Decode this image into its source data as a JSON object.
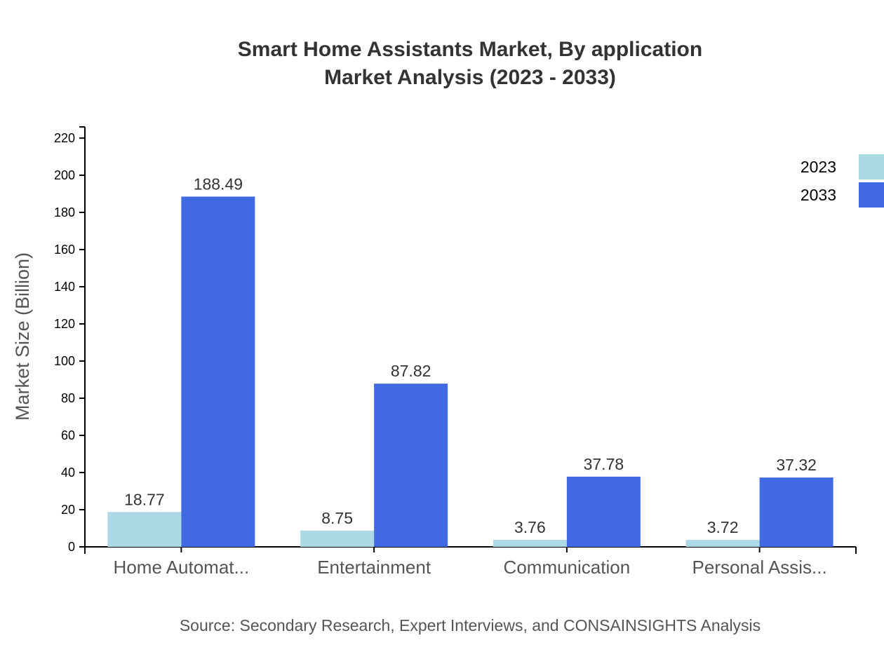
{
  "chart_data": {
    "type": "bar",
    "title": "Smart Home Assistants Market, By application",
    "subtitle": "Market Analysis (2023 - 2033)",
    "xlabel": "",
    "ylabel": "Market Size (Billion)",
    "ylim": [
      0,
      226
    ],
    "yticks": [
      0,
      20,
      40,
      60,
      80,
      100,
      120,
      140,
      160,
      180,
      200,
      220
    ],
    "categories": [
      "Home Automat...",
      "Entertainment",
      "Communication",
      "Personal Assis..."
    ],
    "series": [
      {
        "name": "2023",
        "color": "#add8e6",
        "values": [
          18.77,
          8.75,
          3.76,
          3.72
        ]
      },
      {
        "name": "2033",
        "color": "#4169e1",
        "values": [
          188.49,
          87.82,
          37.78,
          37.32
        ]
      }
    ],
    "legend": "top-right",
    "grid": false,
    "source": "Source: Secondary Research, Expert Interviews, and CONSAINSIGHTS Analysis"
  }
}
